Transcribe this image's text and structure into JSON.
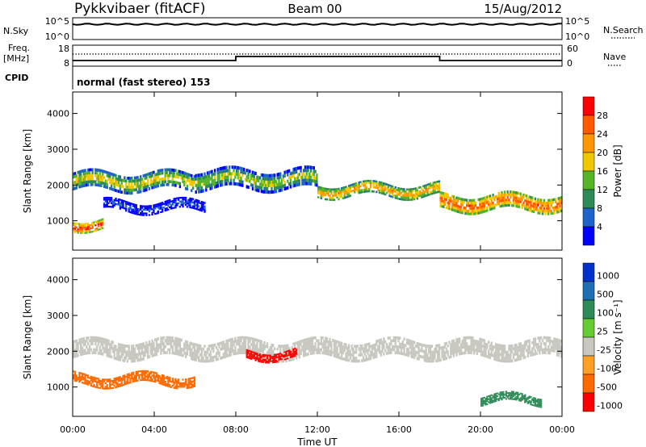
{
  "header": {
    "site": "Pykkvibaer (fitACF)",
    "beam": "Beam 00",
    "date": "15/Aug/2012"
  },
  "status_panel": {
    "nsky_label": "N.Sky",
    "nsky_ticks": [
      "10^5",
      "10^0"
    ],
    "nsearch_label": "N.Search",
    "nsearch_ticks": [
      "10^5",
      "10^0"
    ],
    "freq_label_1": "Freq.",
    "freq_label_2": "[MHz]",
    "freq_ticks": [
      "18",
      "8"
    ],
    "nave_label": "Nave",
    "nave_ticks": [
      "60",
      "0"
    ],
    "cpid_label": "CPID",
    "cpid_value": "normal (fast stereo) 153"
  },
  "chart_data": [
    {
      "type": "heatmap",
      "name": "power",
      "ylabel": "Slant Range [km]",
      "yticks": [
        "4000",
        "3000",
        "2000",
        "1000"
      ],
      "ylim": [
        180,
        4600
      ],
      "xlabel": "Time UT",
      "xticks": [
        "00:00",
        "04:00",
        "08:00",
        "12:00",
        "16:00",
        "20:00",
        "00:00"
      ],
      "colorbar": {
        "label": "Power [dB]",
        "ticks": [
          "28",
          "24",
          "20",
          "16",
          "12",
          "8",
          "4"
        ],
        "colors": [
          "#ff0000",
          "#ff5a00",
          "#ff9800",
          "#f0c800",
          "#55b428",
          "#2e8b57",
          "#1e64c8",
          "#0000ff"
        ]
      },
      "echo_bands_km": [
        {
          "t_start_h": 0.0,
          "t_end_h": 6.0,
          "center_km": 2100,
          "width_km": 500,
          "power_db": 18
        },
        {
          "t_start_h": 6.0,
          "t_end_h": 12.0,
          "center_km": 2150,
          "width_km": 550,
          "power_db": 16
        },
        {
          "t_start_h": 12.0,
          "t_end_h": 18.0,
          "center_km": 1850,
          "width_km": 350,
          "power_db": 22
        },
        {
          "t_start_h": 18.0,
          "t_end_h": 24.0,
          "center_km": 1500,
          "width_km": 450,
          "power_db": 26
        },
        {
          "t_start_h": 0.0,
          "t_end_h": 1.5,
          "center_km": 900,
          "width_km": 300,
          "power_db": 28
        },
        {
          "t_start_h": 1.5,
          "t_end_h": 6.5,
          "center_km": 1400,
          "width_km": 300,
          "power_db": 6
        }
      ]
    },
    {
      "type": "heatmap",
      "name": "velocity",
      "ylabel": "Slant Range [km]",
      "yticks": [
        "4000",
        "3000",
        "2000",
        "1000"
      ],
      "ylim": [
        180,
        4600
      ],
      "xlabel": "Time UT",
      "xticks": [
        "00:00",
        "04:00",
        "08:00",
        "12:00",
        "16:00",
        "20:00",
        "00:00"
      ],
      "colorbar": {
        "label": "Velocity [m s⁻¹]",
        "ticks": [
          "1000",
          "500",
          "100",
          "25",
          "-25",
          "-100",
          "-500",
          "-1000"
        ],
        "colors": [
          "#0033cc",
          "#1e6fb4",
          "#2e8b57",
          "#66cc33",
          "#c8c8c0",
          "#ffa028",
          "#ff6a00",
          "#ff0000"
        ]
      },
      "echo_bands_km": [
        {
          "t_start_h": 0.0,
          "t_end_h": 24.0,
          "center_km": 2050,
          "width_km": 500,
          "velocity": 0
        },
        {
          "t_start_h": 8.5,
          "t_end_h": 11.0,
          "center_km": 1900,
          "width_km": 250,
          "velocity": -800
        },
        {
          "t_start_h": 0.0,
          "t_end_h": 6.0,
          "center_km": 1200,
          "width_km": 300,
          "velocity": -150
        },
        {
          "t_start_h": 20.0,
          "t_end_h": 23.0,
          "center_km": 650,
          "width_km": 250,
          "velocity": 400
        }
      ]
    }
  ]
}
